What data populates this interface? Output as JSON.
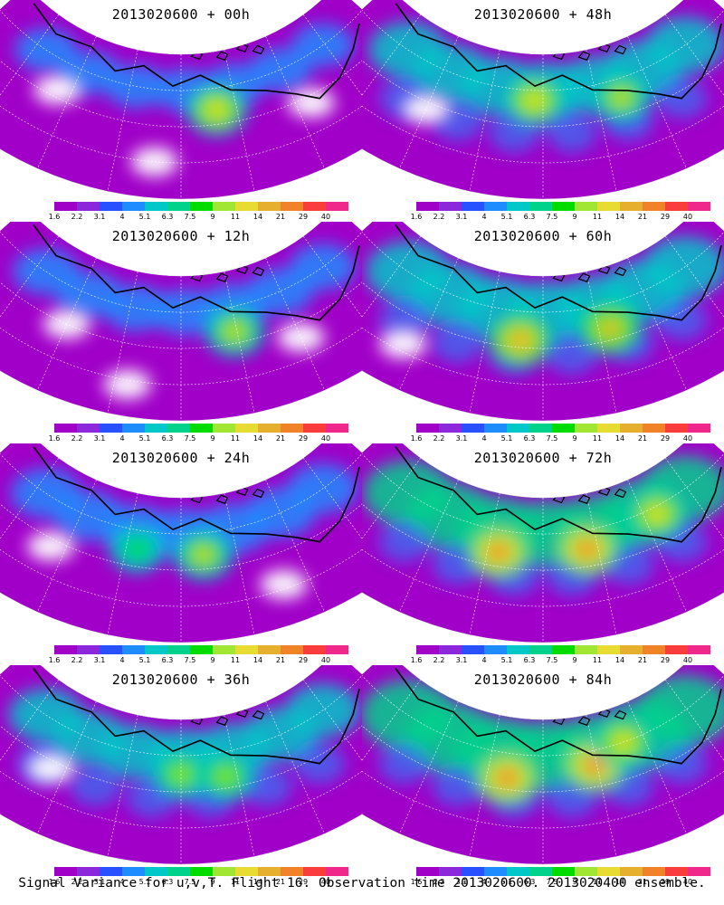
{
  "panels": [
    {
      "title": "2013020600 + 00h",
      "intensity": 0.15,
      "hot": [
        [
          0.58,
          0.4,
          0.6
        ]
      ],
      "gaps": [
        [
          0.22,
          0.45
        ],
        [
          0.78,
          0.55
        ],
        [
          0.45,
          0.75
        ]
      ],
      "col": 0,
      "row": 0
    },
    {
      "title": "2013020600 + 12h",
      "intensity": 0.22,
      "hot": [
        [
          0.62,
          0.42,
          0.55
        ]
      ],
      "gaps": [
        [
          0.25,
          0.5
        ],
        [
          0.75,
          0.6
        ],
        [
          0.4,
          0.78
        ]
      ],
      "col": 0,
      "row": 1
    },
    {
      "title": "2013020600 + 24h",
      "intensity": 0.3,
      "hot": [
        [
          0.55,
          0.4,
          0.55
        ],
        [
          0.4,
          0.38,
          0.4
        ]
      ],
      "gaps": [
        [
          0.22,
          0.55
        ],
        [
          0.7,
          0.72
        ]
      ],
      "col": 0,
      "row": 2
    },
    {
      "title": "2013020600 + 36h",
      "intensity": 0.38,
      "hot": [
        [
          0.5,
          0.38,
          0.5
        ],
        [
          0.6,
          0.42,
          0.5
        ]
      ],
      "gaps": [
        [
          0.22,
          0.55
        ]
      ],
      "col": 0,
      "row": 3
    },
    {
      "title": "2013020600 + 48h",
      "intensity": 0.45,
      "hot": [
        [
          0.48,
          0.32,
          0.6
        ],
        [
          0.68,
          0.38,
          0.55
        ]
      ],
      "gaps": [
        [
          0.25,
          0.55
        ]
      ],
      "col": 1,
      "row": 0
    },
    {
      "title": "2013020600 + 60h",
      "intensity": 0.55,
      "hot": [
        [
          0.45,
          0.45,
          0.7
        ],
        [
          0.65,
          0.42,
          0.65
        ]
      ],
      "gaps": [
        [
          0.22,
          0.7
        ]
      ],
      "col": 1,
      "row": 1
    },
    {
      "title": "2013020600 + 72h",
      "intensity": 0.65,
      "hot": [
        [
          0.4,
          0.4,
          0.75
        ],
        [
          0.6,
          0.38,
          0.75
        ],
        [
          0.78,
          0.3,
          0.6
        ]
      ],
      "gaps": [],
      "col": 1,
      "row": 2
    },
    {
      "title": "2013020600 + 84h",
      "intensity": 0.75,
      "hot": [
        [
          0.42,
          0.42,
          0.8
        ],
        [
          0.62,
          0.35,
          0.8
        ],
        [
          0.7,
          0.25,
          0.6
        ]
      ],
      "gaps": [],
      "col": 1,
      "row": 3
    }
  ],
  "colorbar": {
    "colors": [
      "#a000c8",
      "#8c28dc",
      "#2850ff",
      "#1e8cff",
      "#00c8c8",
      "#00d28c",
      "#00dc00",
      "#a0e632",
      "#e6dc32",
      "#e6af2d",
      "#f08228",
      "#fa3c3c",
      "#f0288c"
    ],
    "labels": [
      "1.6",
      "2.2",
      "3.1",
      "4",
      "5.1",
      "6.3",
      "7.5",
      "9",
      "11",
      "14",
      "21",
      "29",
      "40"
    ]
  },
  "footer": "Signal Variance for u,v,T. Flight 16. Observation time 2013020600. 2013020400 ensemble."
}
